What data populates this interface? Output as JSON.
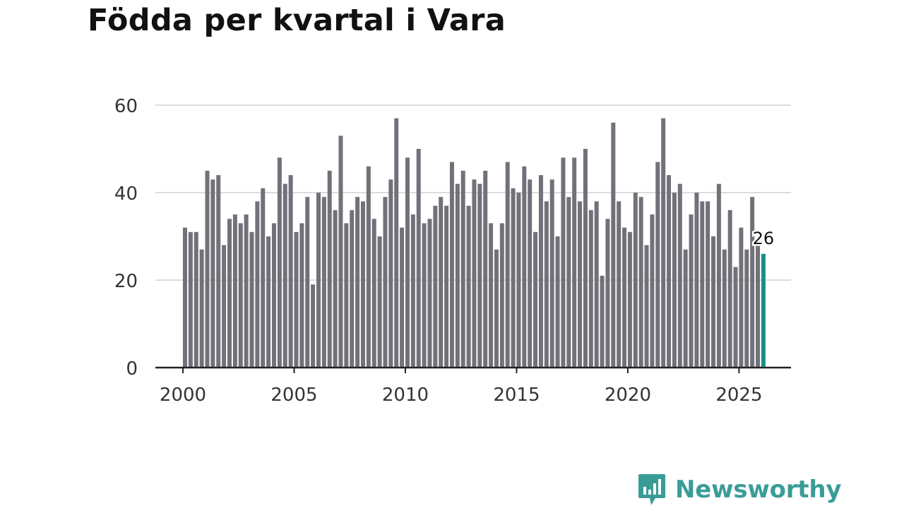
{
  "title": "Födda per kvartal i Vara",
  "brand": {
    "name": "Newsworthy",
    "icon": "bar-chart-speech-bubble-icon",
    "color": "#3a9c97"
  },
  "colors": {
    "bar": "#727179",
    "highlight": "#14928a",
    "grid": "#dcdcdc",
    "axis": "#222222",
    "tick_text": "#333333"
  },
  "chart_data": {
    "type": "bar",
    "title": "Födda per kvartal i Vara",
    "xlabel": "",
    "ylabel": "",
    "period": "quarterly",
    "start": {
      "year": 2000,
      "quarter": 1
    },
    "values": [
      32,
      31,
      31,
      27,
      45,
      43,
      44,
      28,
      34,
      35,
      33,
      35,
      31,
      38,
      41,
      30,
      33,
      48,
      42,
      44,
      31,
      33,
      39,
      19,
      40,
      39,
      45,
      36,
      53,
      33,
      36,
      39,
      38,
      46,
      34,
      30,
      39,
      43,
      57,
      32,
      48,
      35,
      50,
      33,
      34,
      37,
      39,
      37,
      47,
      42,
      45,
      37,
      43,
      42,
      45,
      33,
      27,
      33,
      47,
      41,
      40,
      46,
      43,
      31,
      44,
      38,
      43,
      30,
      48,
      39,
      48,
      38,
      50,
      36,
      38,
      21,
      34,
      56,
      38,
      32,
      31,
      40,
      39,
      28,
      35,
      47,
      57,
      44,
      40,
      42,
      27,
      35,
      40,
      38,
      38,
      30,
      42,
      27,
      36,
      23,
      32,
      27,
      39,
      28,
      26
    ],
    "highlight": {
      "index": 104,
      "label": "26"
    },
    "ylim": [
      0,
      60
    ],
    "yticks": [
      0,
      20,
      40,
      60
    ],
    "xticks": [
      2000,
      2005,
      2010,
      2015,
      2020,
      2025
    ],
    "grid": true
  }
}
